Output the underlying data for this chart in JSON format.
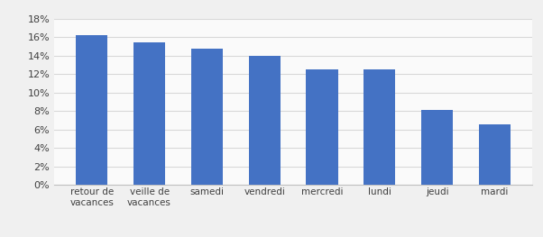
{
  "categories": [
    "retour de\nvacances",
    "veille de\nvacances",
    "samedi",
    "vendredi",
    "mercredi",
    "lundi",
    "jeudi",
    "mardi"
  ],
  "values": [
    0.162,
    0.155,
    0.148,
    0.14,
    0.125,
    0.125,
    0.081,
    0.066
  ],
  "bar_color": "#4472C4",
  "ylim": [
    0,
    0.18
  ],
  "yticks": [
    0.0,
    0.02,
    0.04,
    0.06,
    0.08,
    0.1,
    0.12,
    0.14,
    0.16,
    0.18
  ],
  "background_color": "#F0F0F0",
  "plot_background": "#FAFAFA",
  "grid_color": "#D8D8D8",
  "tick_fontsize": 8.0,
  "label_fontsize": 7.5,
  "bar_width": 0.55
}
